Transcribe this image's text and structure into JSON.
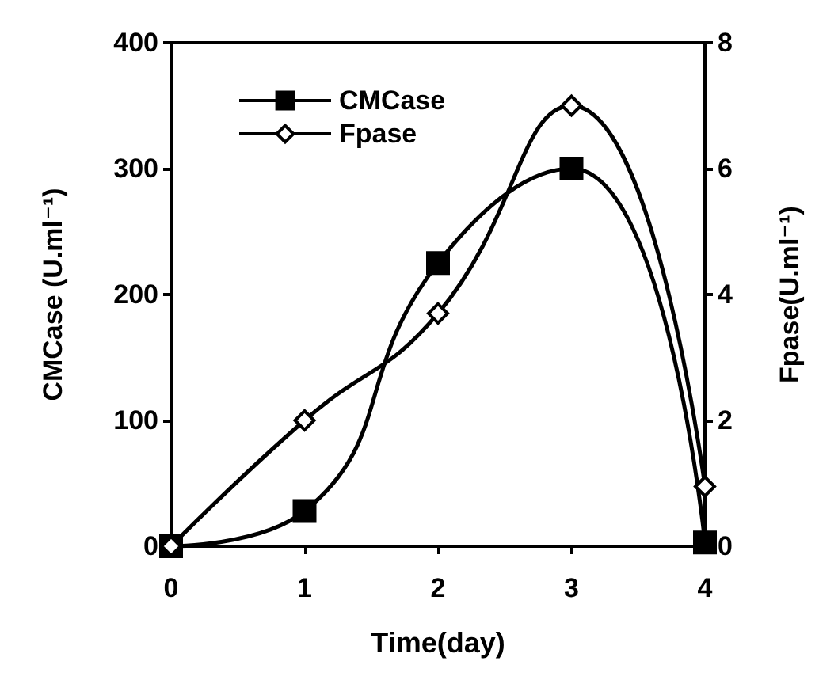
{
  "chart_data": {
    "type": "line",
    "xlabel": "Time(day)",
    "ylabel": "CMCase (U.ml⁻¹)",
    "y2label": "Fpase(U.ml⁻¹)",
    "x": [
      0,
      1,
      2,
      3,
      4
    ],
    "xlim": [
      0,
      4
    ],
    "xticks": [
      0,
      1,
      2,
      3,
      4
    ],
    "ylim": [
      0,
      400
    ],
    "yticks": [
      0,
      100,
      200,
      300,
      400
    ],
    "y2lim": [
      0,
      8
    ],
    "y2ticks": [
      0,
      2,
      4,
      6,
      8
    ],
    "grid": false,
    "legend": "top left",
    "series": [
      {
        "name": "CMCase",
        "color": "#000000",
        "marker": "square",
        "values": [
          0,
          28,
          225,
          300,
          3
        ]
      },
      {
        "name": "Fpase",
        "color": "#000000",
        "marker": "diamond",
        "axis": "y2",
        "values": [
          0,
          2.0,
          3.7,
          7.0,
          0.95
        ]
      }
    ]
  }
}
